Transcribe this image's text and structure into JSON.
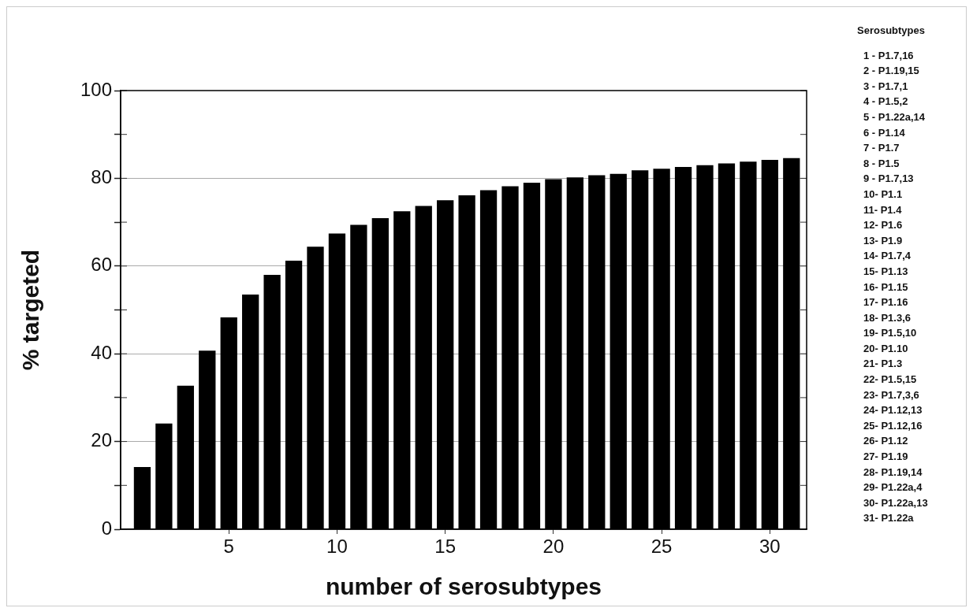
{
  "chart_data": {
    "type": "bar",
    "xlabel": "number of serosubtypes",
    "ylabel": "% targeted",
    "x": [
      1,
      2,
      3,
      4,
      5,
      6,
      7,
      8,
      9,
      10,
      11,
      12,
      13,
      14,
      15,
      16,
      17,
      18,
      19,
      20,
      21,
      22,
      23,
      24,
      25,
      26,
      27,
      28,
      29,
      30,
      31
    ],
    "values": [
      14.2,
      24.1,
      32.7,
      40.7,
      48.3,
      53.5,
      58.0,
      61.2,
      64.4,
      67.4,
      69.4,
      70.9,
      72.5,
      73.7,
      75.0,
      76.1,
      77.3,
      78.2,
      79.0,
      79.8,
      80.2,
      80.7,
      81.0,
      81.8,
      82.2,
      82.6,
      83.0,
      83.4,
      83.8,
      84.2,
      84.6
    ],
    "color": "#000000",
    "xlim": [
      0,
      31.7
    ],
    "xticks": [
      5,
      10,
      15,
      20,
      25,
      30
    ],
    "ylim": [
      0,
      100
    ],
    "yticks": [
      0,
      {
        "value": 10,
        "label": null
      },
      20,
      {
        "value": 30,
        "label": null
      },
      40,
      {
        "value": 50,
        "label": null
      },
      60,
      {
        "value": 70,
        "label": null
      },
      80,
      {
        "value": 90,
        "label": null
      },
      100
    ],
    "grid": "y",
    "legend": false,
    "annotations": [
      "Serosubtypes",
      "1 - P1.7,16",
      "2 - P1.19,15",
      "3 - P1.7,1",
      "4 - P1.5,2",
      "5 - P1.22a,14",
      "6 - P1.14",
      "7 - P1.7",
      "8 - P1.5",
      "9 - P1.7,13",
      "10- P1.1",
      "11- P1.4",
      "12- P1.6",
      "13- P1.9",
      "14- P1.7,4",
      "15- P1.13",
      "16- P1.15",
      "17- P1.16",
      "18- P1.3,6",
      "19- P1.5,10",
      "20- P1.10",
      "21- P1.3",
      "22- P1.5,15",
      "23- P1.7,3,6",
      "24- P1.12,13",
      "25- P1.12,16",
      "26- P1.12",
      "27- P1.19",
      "28- P1.19,14",
      "29- P1.22a,4",
      "30- P1.22a,13",
      "31- P1.22a"
    ]
  }
}
